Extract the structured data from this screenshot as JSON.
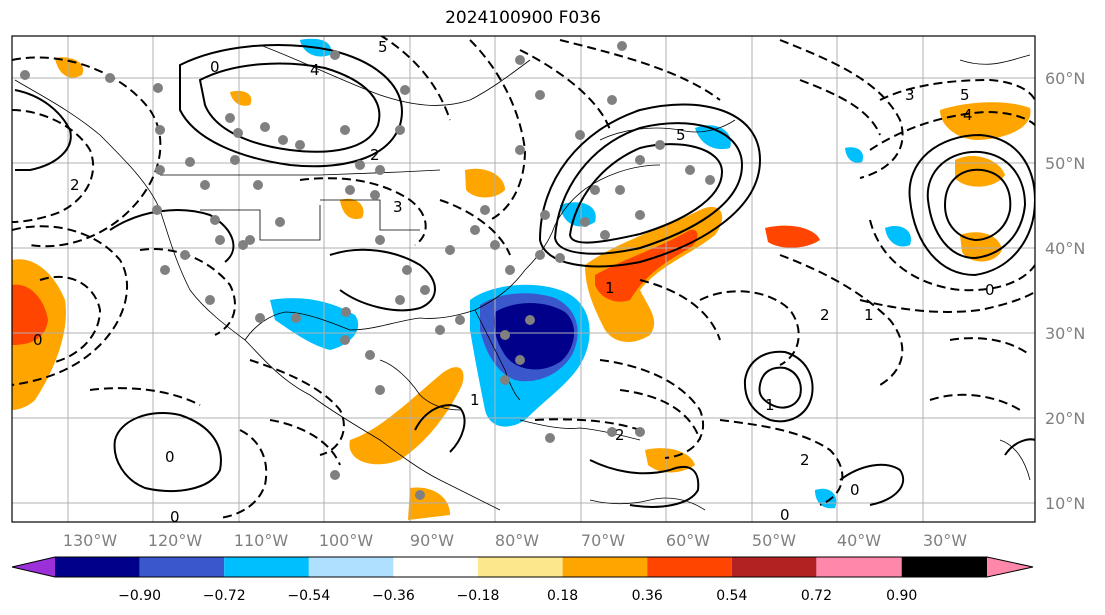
{
  "title": "2024100900 F036",
  "lon_ticks": [
    "130°W",
    "120°W",
    "110°W",
    "100°W",
    "90°W",
    "80°W",
    "70°W",
    "60°W",
    "50°W",
    "40°W",
    "30°W"
  ],
  "lat_ticks": [
    "60°N",
    "50°N",
    "40°N",
    "30°N",
    "20°N",
    "10°N"
  ],
  "colorbar": {
    "colors": [
      "#9b30d9",
      "#00008b",
      "#3a58cc",
      "#00bfff",
      "#b0e0ff",
      "#ffffff",
      "#fce88a",
      "#ffa500",
      "#ff4500",
      "#b22222",
      "#ff88aa"
    ],
    "labels": [
      "−0.90",
      "−0.72",
      "−0.54",
      "−0.36",
      "−0.18",
      "0.18",
      "0.36",
      "0.54",
      "0.72",
      "0.90"
    ]
  },
  "contour_labels": [
    "0",
    "0",
    "0",
    "2",
    "2",
    "3",
    "5",
    "5",
    "4",
    "4",
    "2",
    "1",
    "1",
    "1",
    "2",
    "0",
    "0",
    "0",
    "0",
    "3",
    "5",
    "2",
    "1"
  ],
  "legend_colors": {
    "grid": "#b0b0b0",
    "tick_text": "#808080",
    "station_dots": "#808080"
  }
}
